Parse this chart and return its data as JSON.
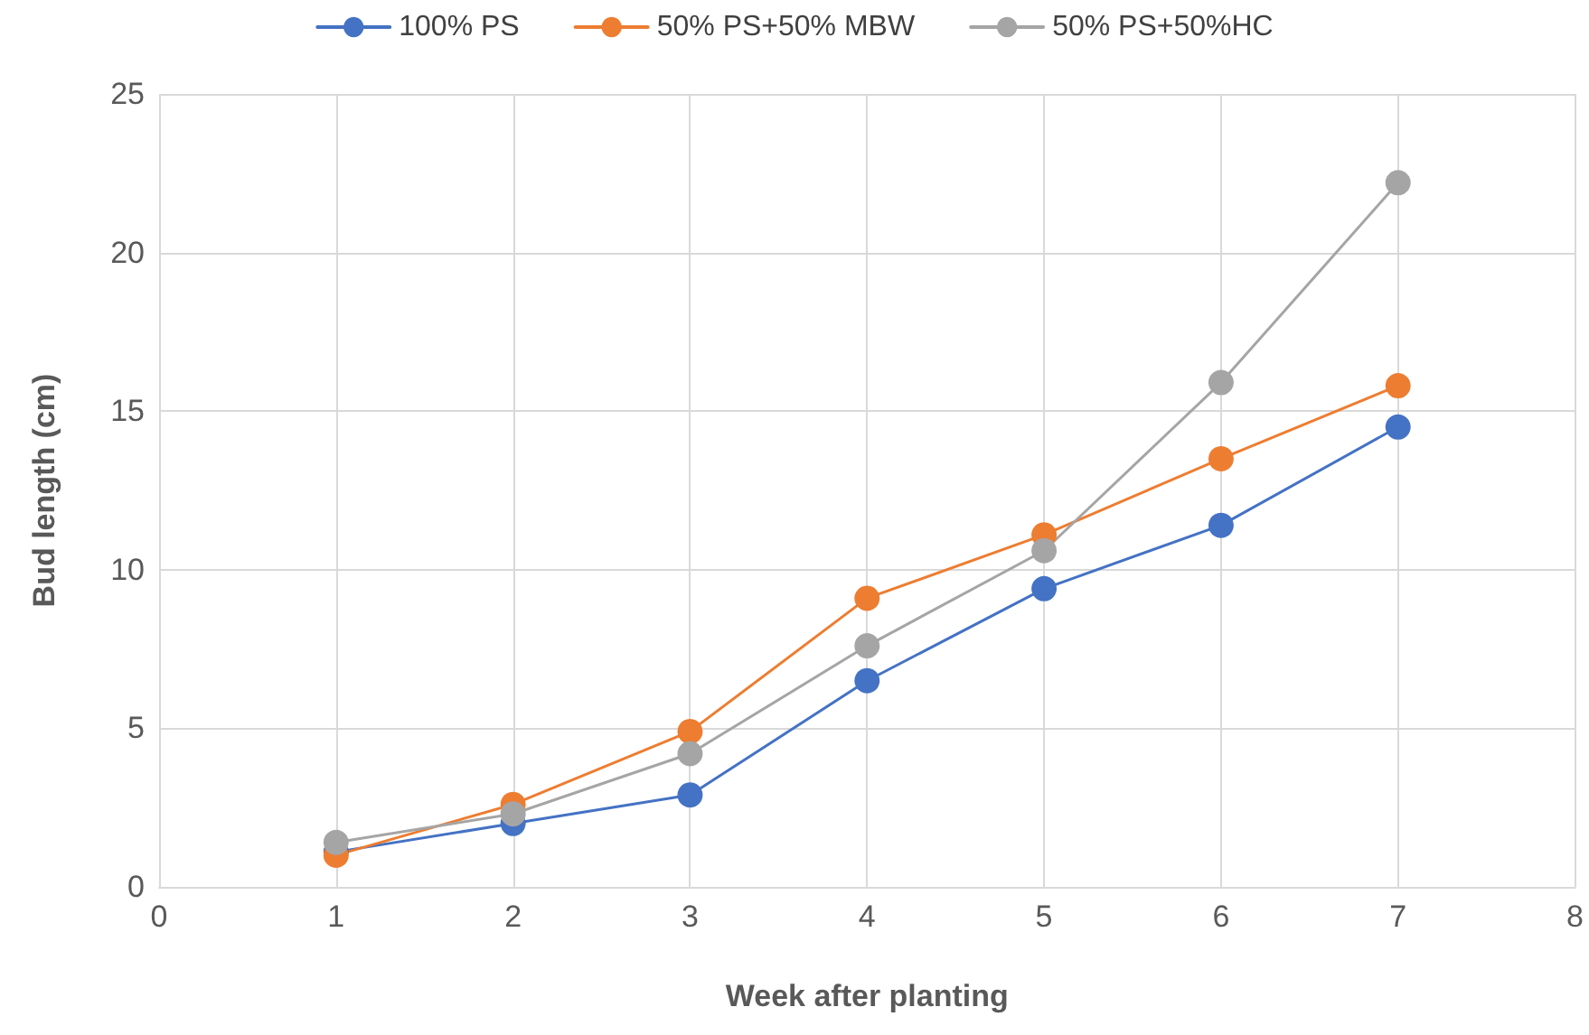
{
  "chart_data": {
    "type": "line",
    "xlabel": "Week after planting",
    "ylabel": "Bud length (cm)",
    "x": [
      1,
      2,
      3,
      4,
      5,
      6,
      7
    ],
    "series": [
      {
        "name": "100% PS",
        "color": "#4472c4",
        "values": [
          1.1,
          2.0,
          2.9,
          6.5,
          9.4,
          11.4,
          14.5
        ]
      },
      {
        "name": "50% PS+50% MBW",
        "color": "#ed7d31",
        "values": [
          1.0,
          2.6,
          4.9,
          9.1,
          11.1,
          13.5,
          15.8
        ]
      },
      {
        "name": "50% PS+50%HC",
        "color": "#a5a5a5",
        "values": [
          1.4,
          2.3,
          4.2,
          7.6,
          10.6,
          15.9,
          22.2
        ]
      }
    ],
    "xlim": [
      0,
      8
    ],
    "xticks": [
      0,
      1,
      2,
      3,
      4,
      5,
      6,
      7,
      8
    ],
    "ylim": [
      0,
      25
    ],
    "yticks": [
      0,
      5,
      10,
      15,
      20,
      25
    ],
    "grid": true,
    "legend": "top",
    "marker": "circle",
    "line_style": "solid"
  }
}
